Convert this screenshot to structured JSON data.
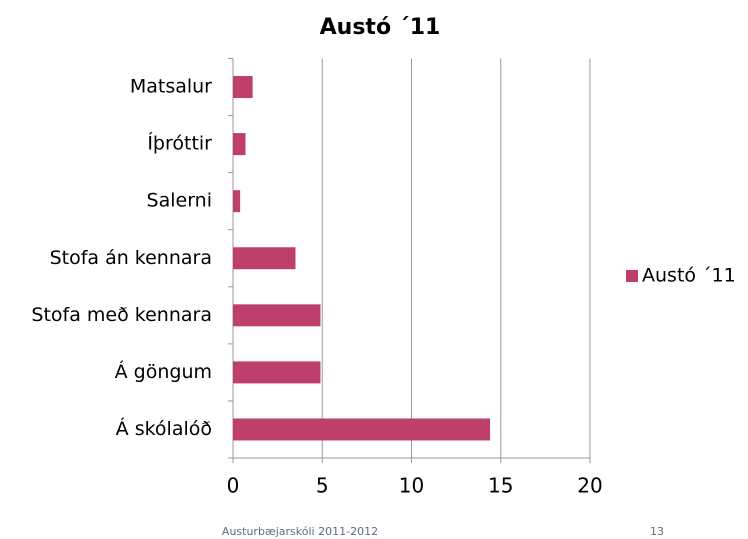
{
  "chart_data": {
    "type": "bar",
    "orientation": "horizontal",
    "title": "Austó ´11",
    "categories": [
      "Matsalur",
      "Íþróttir",
      "Salerni",
      "Stofa án kennara",
      "Stofa með kennara",
      "Á göngum",
      "Á skólalóð"
    ],
    "series": [
      {
        "name": "Austó ´11",
        "color": "#be3f6c",
        "values": [
          1.1,
          0.7,
          0.4,
          3.5,
          4.9,
          4.9,
          14.4
        ]
      }
    ],
    "xlim": [
      0,
      20
    ],
    "xticks": [
      0,
      5,
      10,
      15,
      20
    ],
    "grid": true,
    "legend": "right"
  },
  "footer": {
    "left": "Austurbæjarskóli 2011-2012",
    "right": "13"
  }
}
